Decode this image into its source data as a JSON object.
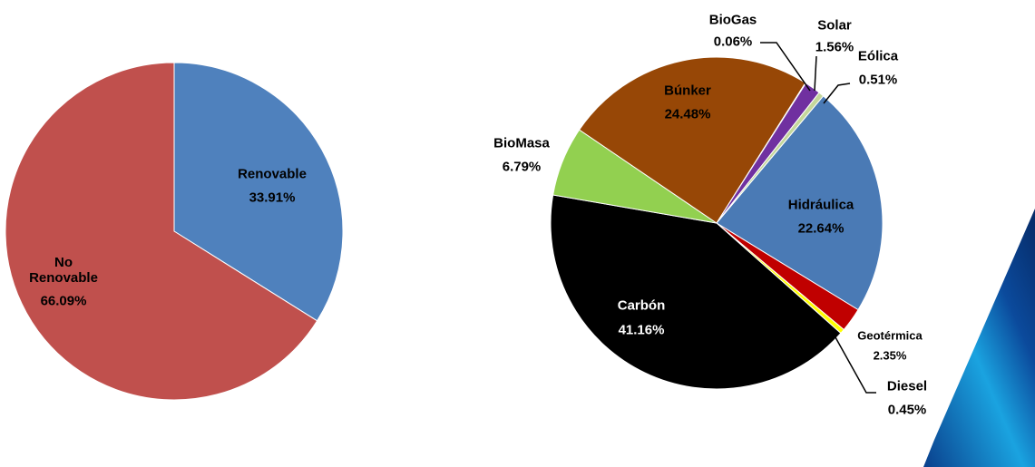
{
  "chart_data": [
    {
      "type": "pie",
      "categories": [
        "Renovable",
        "No Renovable"
      ],
      "values": [
        33.91,
        66.09
      ],
      "value_labels": [
        "33.91%",
        "66.09%"
      ],
      "colors": [
        "#4f81bd",
        "#c0504d"
      ]
    },
    {
      "type": "pie",
      "categories": [
        "Hidráulica",
        "Geotérmica",
        "Diesel",
        "Carbón",
        "BioMasa",
        "Búnker",
        "BioGas",
        "Solar",
        "Eólica"
      ],
      "values": [
        22.64,
        2.35,
        0.45,
        41.16,
        6.79,
        24.48,
        0.06,
        1.56,
        0.51
      ],
      "value_labels": [
        "22.64%",
        "2.35%",
        "0.45%",
        "41.16%",
        "6.79%",
        "24.48%",
        "0.06%",
        "1.56%",
        "0.51%"
      ],
      "colors": [
        "#4a7ab5",
        "#c00000",
        "#ffff00",
        "#000000",
        "#92d050",
        "#974706",
        "#8c8c8c",
        "#7030a0",
        "#c4d79b"
      ]
    }
  ]
}
